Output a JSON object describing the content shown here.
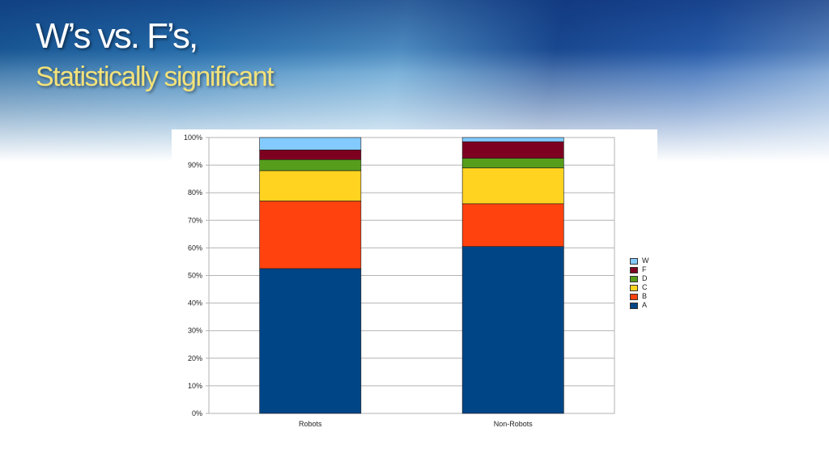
{
  "slide": {
    "title": "W’s vs. F’s,",
    "subtitle": "Statistically significant"
  },
  "colors": {
    "A": "#004586",
    "B": "#ff420e",
    "C": "#ffd320",
    "D": "#579d1c",
    "F": "#7e0021",
    "W": "#83caff"
  },
  "chart_data": {
    "type": "bar",
    "stacked": true,
    "categories": [
      "Robots",
      "Non-Robots"
    ],
    "series": [
      {
        "name": "A",
        "values": [
          52.5,
          60.5
        ]
      },
      {
        "name": "B",
        "values": [
          24.5,
          15.5
        ]
      },
      {
        "name": "C",
        "values": [
          11,
          13
        ]
      },
      {
        "name": "D",
        "values": [
          4,
          3.5
        ]
      },
      {
        "name": "F",
        "values": [
          3.5,
          6
        ]
      },
      {
        "name": "W",
        "values": [
          4.5,
          1.5
        ]
      }
    ],
    "ylim": [
      0,
      100
    ],
    "yticks": [
      "0%",
      "10%",
      "20%",
      "30%",
      "40%",
      "50%",
      "60%",
      "70%",
      "80%",
      "90%",
      "100%"
    ],
    "grid": true,
    "legend_position": "right",
    "legend_order": [
      "W",
      "F",
      "D",
      "C",
      "B",
      "A"
    ]
  }
}
